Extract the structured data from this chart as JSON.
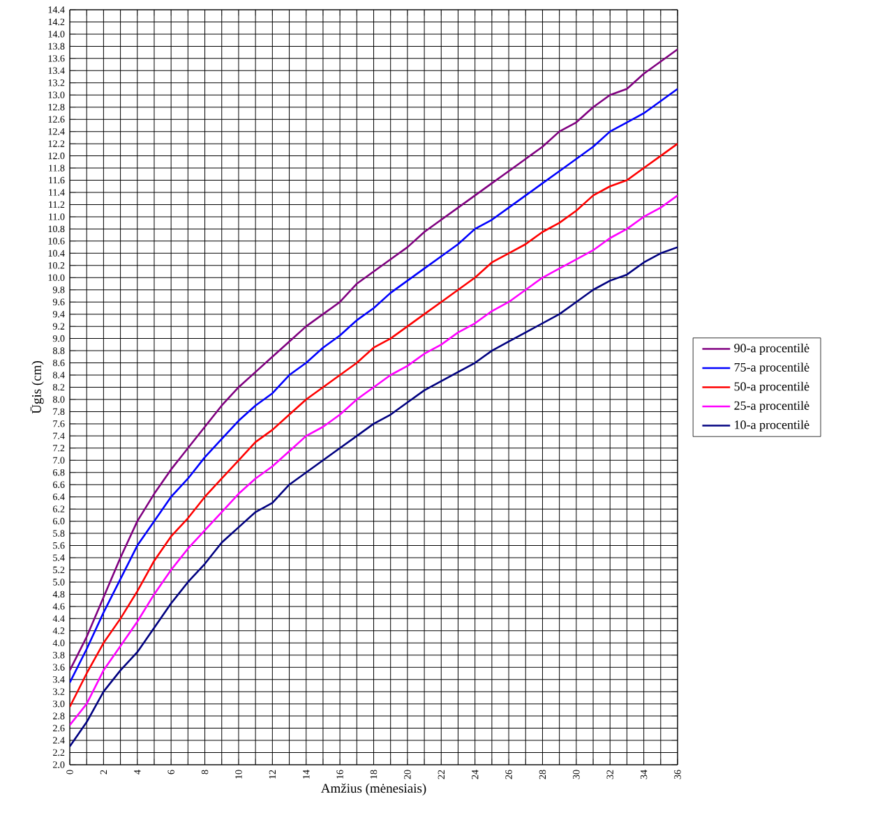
{
  "chart_data": {
    "type": "line",
    "xlabel": "Amžius (mėnesiais)",
    "ylabel": "Ūgis (cm)",
    "x": [
      0,
      1,
      2,
      3,
      4,
      5,
      6,
      7,
      8,
      9,
      10,
      11,
      12,
      13,
      14,
      15,
      16,
      17,
      18,
      19,
      20,
      21,
      22,
      23,
      24,
      25,
      26,
      27,
      28,
      29,
      30,
      31,
      32,
      33,
      34,
      35,
      36
    ],
    "series": [
      {
        "name": "90-a procentilė",
        "color": "#800080",
        "values": [
          3.55,
          4.1,
          4.75,
          5.4,
          6.0,
          6.45,
          6.85,
          7.2,
          7.55,
          7.9,
          8.2,
          8.45,
          8.7,
          8.95,
          9.2,
          9.4,
          9.6,
          9.9,
          10.1,
          10.3,
          10.5,
          10.75,
          10.95,
          11.15,
          11.35,
          11.55,
          11.75,
          11.95,
          12.15,
          12.4,
          12.55,
          12.8,
          13.0,
          13.1,
          13.35,
          13.55,
          13.75
        ]
      },
      {
        "name": "75-a procentilė",
        "color": "#0000ff",
        "values": [
          3.35,
          3.9,
          4.5,
          5.05,
          5.6,
          6.0,
          6.4,
          6.7,
          7.05,
          7.35,
          7.65,
          7.9,
          8.1,
          8.4,
          8.6,
          8.85,
          9.05,
          9.3,
          9.5,
          9.75,
          9.95,
          10.15,
          10.35,
          10.55,
          10.8,
          10.95,
          11.15,
          11.35,
          11.55,
          11.75,
          11.95,
          12.15,
          12.4,
          12.55,
          12.7,
          12.9,
          13.1
        ]
      },
      {
        "name": "50-a procentilė",
        "color": "#ff0000",
        "values": [
          2.95,
          3.5,
          4.0,
          4.4,
          4.85,
          5.35,
          5.75,
          6.05,
          6.4,
          6.7,
          7.0,
          7.3,
          7.5,
          7.75,
          8.0,
          8.2,
          8.4,
          8.6,
          8.85,
          9.0,
          9.2,
          9.4,
          9.6,
          9.8,
          10.0,
          10.25,
          10.4,
          10.55,
          10.75,
          10.9,
          11.1,
          11.35,
          11.5,
          11.6,
          11.8,
          12.0,
          12.2
        ]
      },
      {
        "name": "25-a procentilė",
        "color": "#ff00ff",
        "values": [
          2.65,
          3.0,
          3.55,
          3.95,
          4.35,
          4.8,
          5.2,
          5.55,
          5.85,
          6.15,
          6.45,
          6.7,
          6.9,
          7.15,
          7.4,
          7.55,
          7.75,
          8.0,
          8.2,
          8.4,
          8.55,
          8.75,
          8.9,
          9.1,
          9.25,
          9.45,
          9.6,
          9.8,
          10.0,
          10.15,
          10.3,
          10.45,
          10.65,
          10.8,
          11.0,
          11.15,
          11.35
        ]
      },
      {
        "name": "10-a procentilė",
        "color": "#000080",
        "values": [
          2.3,
          2.7,
          3.2,
          3.55,
          3.85,
          4.25,
          4.65,
          5.0,
          5.3,
          5.65,
          5.9,
          6.15,
          6.3,
          6.6,
          6.8,
          7.0,
          7.2,
          7.4,
          7.6,
          7.75,
          7.95,
          8.15,
          8.3,
          8.45,
          8.6,
          8.8,
          8.95,
          9.1,
          9.25,
          9.4,
          9.6,
          9.8,
          9.95,
          10.05,
          10.25,
          10.4,
          10.5
        ]
      }
    ],
    "xlim": [
      0,
      36
    ],
    "ylim": [
      2.0,
      14.4
    ],
    "xticks": [
      0,
      {
        "value": 1,
        "label": null
      },
      2,
      {
        "value": 3,
        "label": null
      },
      4,
      {
        "value": 5,
        "label": null
      },
      6,
      {
        "value": 7,
        "label": null
      },
      8,
      {
        "value": 9,
        "label": null
      },
      10,
      {
        "value": 11,
        "label": null
      },
      12,
      {
        "value": 13,
        "label": null
      },
      14,
      {
        "value": 15,
        "label": null
      },
      16,
      {
        "value": 17,
        "label": null
      },
      18,
      {
        "value": 19,
        "label": null
      },
      20,
      {
        "value": 21,
        "label": null
      },
      22,
      {
        "value": 23,
        "label": null
      },
      24,
      {
        "value": 25,
        "label": null
      },
      26,
      {
        "value": 27,
        "label": null
      },
      28,
      {
        "value": 29,
        "label": null
      },
      30,
      {
        "value": 31,
        "label": null
      },
      32,
      {
        "value": 33,
        "label": null
      },
      34,
      {
        "value": 35,
        "label": null
      },
      36
    ],
    "yticks": [
      {
        "value": 2.0,
        "label": "2.0"
      },
      2.2,
      2.4,
      2.6,
      2.8,
      {
        "value": 3.0,
        "label": "3.0"
      },
      3.2,
      3.4,
      3.6,
      3.8,
      {
        "value": 4.0,
        "label": "4.0"
      },
      4.2,
      4.4,
      4.6,
      4.8,
      {
        "value": 5.0,
        "label": "5.0"
      },
      5.2,
      5.4,
      5.6,
      5.8,
      {
        "value": 6.0,
        "label": "6.0"
      },
      6.2,
      6.4,
      6.6,
      6.8,
      {
        "value": 7.0,
        "label": "7.0"
      },
      7.2,
      7.4,
      7.6,
      7.8,
      {
        "value": 8.0,
        "label": "8.0"
      },
      8.2,
      8.4,
      8.6,
      8.8,
      {
        "value": 9.0,
        "label": "9.0"
      },
      9.2,
      9.4,
      9.6,
      9.8,
      {
        "value": 10.0,
        "label": "10.0"
      },
      10.2,
      10.4,
      10.6,
      10.8,
      {
        "value": 11.0,
        "label": "11.0"
      },
      11.2,
      11.4,
      11.6,
      11.8,
      {
        "value": 12.0,
        "label": "12.0"
      },
      12.2,
      12.4,
      12.6,
      12.8,
      {
        "value": 13.0,
        "label": "13.0"
      },
      13.2,
      13.4,
      13.6,
      13.8,
      {
        "value": 14.0,
        "label": "14.0"
      },
      14.2,
      14.4
    ],
    "grid": true,
    "legend": "right",
    "marker": "none",
    "line_style": "solid"
  }
}
